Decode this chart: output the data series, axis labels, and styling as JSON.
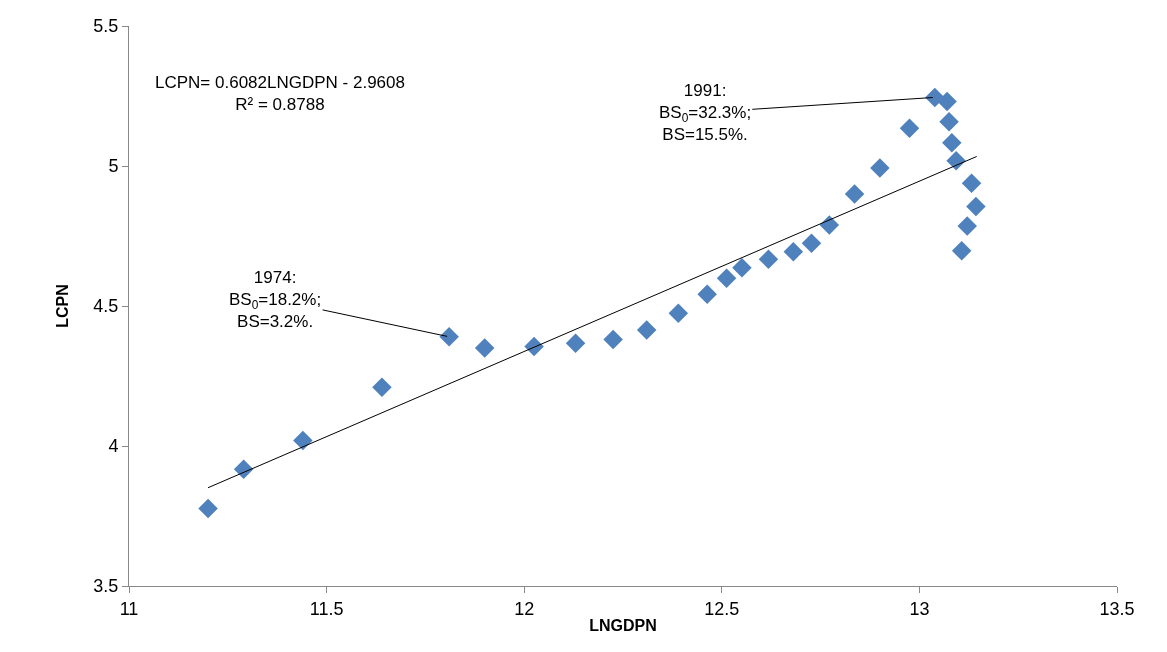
{
  "chart_data": {
    "type": "scatter",
    "xlabel": "LNGDPN",
    "ylabel": "LCPN",
    "xlim": [
      11,
      13.5
    ],
    "xticks": [
      11,
      11.5,
      12,
      12.5,
      13,
      13.5
    ],
    "ylim": [
      3.5,
      5.5
    ],
    "yticks": [
      3.5,
      4,
      4.5,
      5,
      5.5
    ],
    "series": [
      {
        "marker": "diamond",
        "color": "#4f81bd",
        "x": [
          11.2,
          11.29,
          11.44,
          11.64,
          11.81,
          11.9,
          12.025,
          12.13,
          12.225,
          12.31,
          12.39,
          12.463,
          12.512,
          12.551,
          12.618,
          12.681,
          12.727,
          12.772,
          12.836,
          12.9,
          12.975,
          13.039,
          13.07,
          13.075,
          13.082,
          13.093,
          13.132,
          13.143,
          13.121,
          13.107
        ],
        "values": [
          3.777,
          3.917,
          4.02,
          4.21,
          4.39,
          4.35,
          4.355,
          4.367,
          4.38,
          4.414,
          4.474,
          4.542,
          4.599,
          4.637,
          4.667,
          4.694,
          4.724,
          4.789,
          4.9,
          4.993,
          5.135,
          5.245,
          5.23,
          5.158,
          5.083,
          5.019,
          4.938,
          4.855,
          4.786,
          4.697
        ]
      },
      {
        "type": "line",
        "marker": "none",
        "color": "#000000",
        "x": [
          11.2,
          13.145
        ],
        "values": [
          3.851,
          5.034
        ]
      }
    ],
    "annotations": [
      "LCPN= 0.6082LNGDPN - 2.9608\nR² = 0.8788",
      {
        "text": "1991:\nBS$_{0}$=32.3%;\nBS=15.5%.",
        "x": 13.039,
        "y": 5.245
      },
      {
        "text": "1974:\nBS$_{0}$=18.2%;\nBS=3.2%.",
        "x": 11.81,
        "y": 4.39
      }
    ]
  }
}
